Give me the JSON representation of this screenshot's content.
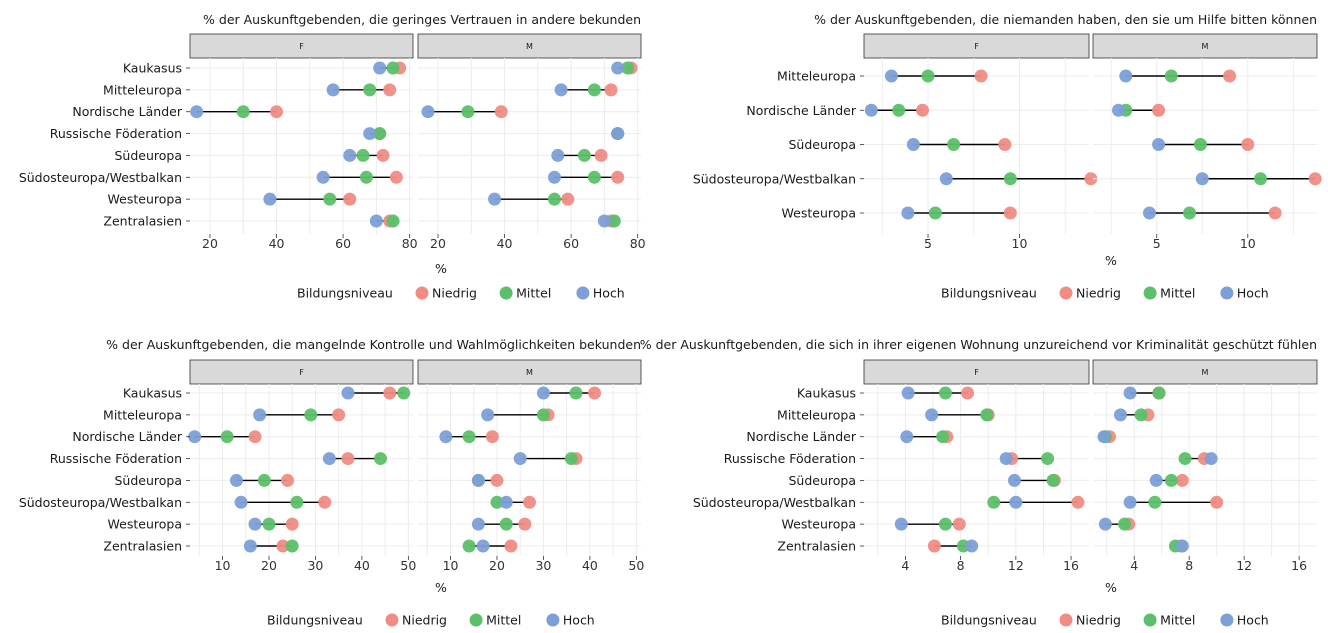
{
  "legend": {
    "title": "Bildungsniveau",
    "items": [
      {
        "label": "Niedrig",
        "color": "#F08C84"
      },
      {
        "label": "Mittel",
        "color": "#5BC069"
      },
      {
        "label": "Hoch",
        "color": "#7B9FD6"
      }
    ]
  },
  "facets": [
    "F",
    "M"
  ],
  "chart_data": [
    {
      "type": "dumbbell",
      "title": "% der Auskunftgebenden, die geringes Vertrauen in andere bekunden",
      "xlabel": "%",
      "xlim": [
        14,
        81
      ],
      "xticks": [
        20,
        40,
        60,
        80
      ],
      "categories": [
        "Kaukasus",
        "Mitteleuropa",
        "Nordische Länder",
        "Russische Föderation",
        "Südeuropa",
        "Südosteuropa/Westbalkan",
        "Westeuropa",
        "Zentralasien"
      ],
      "panels": [
        {
          "facet": "F",
          "series": [
            {
              "name": "Niedrig",
              "values": [
                77,
                74,
                40,
                71,
                72,
                76,
                62,
                74
              ]
            },
            {
              "name": "Mittel",
              "values": [
                75,
                68,
                30,
                71,
                66,
                67,
                56,
                75
              ]
            },
            {
              "name": "Hoch",
              "values": [
                71,
                57,
                16,
                68,
                62,
                54,
                38,
                70
              ]
            }
          ]
        },
        {
          "facet": "M",
          "series": [
            {
              "name": "Niedrig",
              "values": [
                78,
                72,
                39,
                74,
                69,
                74,
                59,
                72
              ]
            },
            {
              "name": "Mittel",
              "values": [
                77,
                67,
                29,
                74,
                64,
                67,
                55,
                73
              ]
            },
            {
              "name": "Hoch",
              "values": [
                74,
                57,
                17,
                74,
                56,
                55,
                37,
                70
              ]
            }
          ]
        }
      ]
    },
    {
      "type": "dumbbell",
      "title": "% der Auskunftgebenden, die niemanden haben, den sie um Hilfe bitten können",
      "xlabel": "%",
      "xlim": [
        1.5,
        13.8
      ],
      "xticks": [
        5,
        10
      ],
      "categories": [
        "Mitteleuropa",
        "Nordische Länder",
        "Südeuropa",
        "Südosteuropa/Westbalkan",
        "Westeuropa"
      ],
      "panels": [
        {
          "facet": "F",
          "series": [
            {
              "name": "Niedrig",
              "values": [
                7.9,
                4.7,
                9.2,
                13.9,
                9.5
              ]
            },
            {
              "name": "Mittel",
              "values": [
                5.0,
                3.4,
                6.4,
                9.5,
                5.4
              ]
            },
            {
              "name": "Hoch",
              "values": [
                3.0,
                1.9,
                4.2,
                6.0,
                3.9
              ]
            }
          ]
        },
        {
          "facet": "M",
          "series": [
            {
              "name": "Niedrig",
              "values": [
                9.0,
                5.1,
                10.0,
                13.7,
                11.5
              ]
            },
            {
              "name": "Mittel",
              "values": [
                5.8,
                3.3,
                7.4,
                10.7,
                6.8
              ]
            },
            {
              "name": "Hoch",
              "values": [
                3.3,
                2.9,
                5.1,
                7.5,
                4.6
              ]
            }
          ]
        }
      ]
    },
    {
      "type": "dumbbell",
      "title": "% der Auskunftgebenden, die mangelnde Kontrolle und Wahlmöglichkeiten bekunden",
      "xlabel": "%",
      "xlim": [
        3,
        51
      ],
      "xticks": [
        10,
        20,
        30,
        40,
        50
      ],
      "categories": [
        "Kaukasus",
        "Mitteleuropa",
        "Nordische Länder",
        "Russische Föderation",
        "Südeuropa",
        "Südosteuropa/Westbalkan",
        "Westeuropa",
        "Zentralasien"
      ],
      "panels": [
        {
          "facet": "F",
          "series": [
            {
              "name": "Niedrig",
              "values": [
                46,
                35,
                17,
                37,
                24,
                32,
                25,
                23
              ]
            },
            {
              "name": "Mittel",
              "values": [
                49,
                29,
                11,
                44,
                19,
                26,
                20,
                25
              ]
            },
            {
              "name": "Hoch",
              "values": [
                37,
                18,
                4,
                33,
                13,
                14,
                17,
                16
              ]
            }
          ]
        },
        {
          "facet": "M",
          "series": [
            {
              "name": "Niedrig",
              "values": [
                41,
                31,
                19,
                37,
                20,
                27,
                26,
                23
              ]
            },
            {
              "name": "Mittel",
              "values": [
                37,
                30,
                14,
                36,
                16,
                20,
                22,
                14
              ]
            },
            {
              "name": "Hoch",
              "values": [
                30,
                18,
                9,
                25,
                16,
                22,
                16,
                17
              ]
            }
          ]
        }
      ]
    },
    {
      "type": "dumbbell",
      "title": "% der Auskunftgebenden, die sich in ihrer eigenen Wohnung unzureichend vor Kriminalität geschützt fühlen",
      "xlabel": "%",
      "xlim": [
        1,
        17.3
      ],
      "xticks": [
        4,
        8,
        12,
        16
      ],
      "categories": [
        "Kaukasus",
        "Mitteleuropa",
        "Nordische Länder",
        "Russische Föderation",
        "Südeuropa",
        "Südosteuropa/Westbalkan",
        "Westeuropa",
        "Zentralasien"
      ],
      "panels": [
        {
          "facet": "F",
          "series": [
            {
              "name": "Niedrig",
              "values": [
                8.5,
                10.0,
                7.0,
                11.7,
                14.8,
                16.5,
                7.9,
                6.1
              ]
            },
            {
              "name": "Mittel",
              "values": [
                6.9,
                9.9,
                6.7,
                14.3,
                14.7,
                10.4,
                6.9,
                8.2
              ]
            },
            {
              "name": "Hoch",
              "values": [
                4.2,
                5.9,
                4.1,
                11.3,
                11.9,
                12.0,
                3.7,
                8.8
              ]
            }
          ]
        },
        {
          "facet": "M",
          "series": [
            {
              "name": "Niedrig",
              "values": [
                5.8,
                5.0,
                2.2,
                9.1,
                7.5,
                10.0,
                3.6,
                7.4
              ]
            },
            {
              "name": "Mittel",
              "values": [
                5.8,
                4.5,
                1.9,
                7.7,
                6.7,
                5.5,
                3.3,
                7.0
              ]
            },
            {
              "name": "Hoch",
              "values": [
                3.7,
                3.0,
                1.8,
                9.6,
                5.6,
                3.7,
                1.9,
                7.5
              ]
            }
          ]
        }
      ]
    }
  ]
}
